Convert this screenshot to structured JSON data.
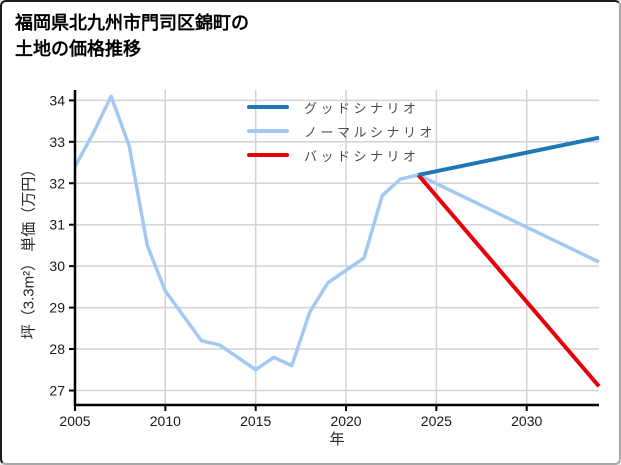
{
  "title": {
    "line1": "福岡県北九州市門司区錦町の",
    "line2": "土地の価格推移"
  },
  "chart_data": {
    "type": "line",
    "title": "福岡県北九州市門司区錦町の土地の価格推移",
    "xlabel": "年",
    "ylabel": "坪（3.3m²） 単価（万円）",
    "title_lines": [
      "福岡県北九州市門司区錦町の",
      "土地の価格推移"
    ],
    "xlim": [
      2005,
      2034
    ],
    "ylim": [
      26.65,
      34.25
    ],
    "x_ticks": [
      2005,
      2010,
      2015,
      2020,
      2025,
      2030
    ],
    "y_ticks": [
      27,
      28,
      29,
      30,
      31,
      32,
      33,
      34
    ],
    "grid": true,
    "grid_color": "#d2d2d2",
    "axis_color": "#000000",
    "tick_label_color": "#1a1a1a",
    "legend_position": "upper-center-inside, no frame",
    "legend_text_color": "#4d4d4d",
    "series": [
      {
        "name": "グッドシナリオ",
        "color": "#1f77b4",
        "line_width": 4,
        "x": [
          2024,
          2034
        ],
        "values": [
          32.2,
          33.1
        ]
      },
      {
        "name": "ノーマルシナリオ",
        "color": "#a1c9f1",
        "line_width": 3.5,
        "x": [
          2005,
          2006,
          2007,
          2008,
          2009,
          2010,
          2011,
          2012,
          2013,
          2014,
          2015,
          2016,
          2017,
          2018,
          2019,
          2020,
          2021,
          2022,
          2023,
          2024,
          2034
        ],
        "values": [
          32.4,
          33.2,
          34.1,
          32.9,
          30.5,
          29.4,
          28.8,
          28.2,
          28.1,
          27.8,
          27.5,
          27.8,
          27.6,
          28.9,
          29.6,
          29.9,
          30.2,
          31.7,
          32.1,
          32.2,
          30.1
        ]
      },
      {
        "name": "バッドシナリオ",
        "color": "#e8000b",
        "line_width": 4,
        "x": [
          2024,
          2034
        ],
        "values": [
          32.2,
          27.1
        ]
      }
    ],
    "draw_order": [
      1,
      2,
      0
    ]
  }
}
